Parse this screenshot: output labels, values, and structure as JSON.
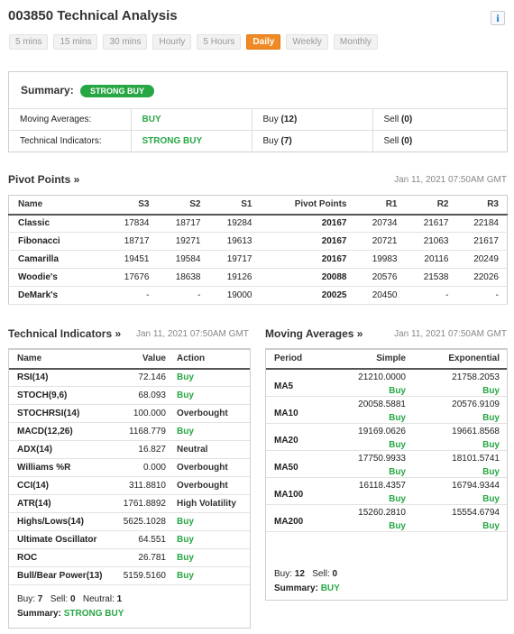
{
  "page": {
    "title": "003850 Technical Analysis"
  },
  "tabs": [
    {
      "label": "5 mins",
      "active": false
    },
    {
      "label": "15 mins",
      "active": false
    },
    {
      "label": "30 mins",
      "active": false
    },
    {
      "label": "Hourly",
      "active": false
    },
    {
      "label": "5 Hours",
      "active": false
    },
    {
      "label": "Daily",
      "active": true
    },
    {
      "label": "Weekly",
      "active": false
    },
    {
      "label": "Monthly",
      "active": false
    }
  ],
  "summary": {
    "label": "Summary:",
    "badge": "STRONG BUY",
    "rows": [
      {
        "name": "Moving Averages:",
        "signal": "BUY",
        "buy_label": "Buy",
        "buy_count": "(12)",
        "sell_label": "Sell",
        "sell_count": "(0)"
      },
      {
        "name": "Technical Indicators:",
        "signal": "STRONG BUY",
        "buy_label": "Buy",
        "buy_count": "(7)",
        "sell_label": "Sell",
        "sell_count": "(0)"
      }
    ]
  },
  "pivot": {
    "title": "Pivot Points »",
    "date": "Jan 11, 2021 07:50AM GMT",
    "headers": [
      "Name",
      "S3",
      "S2",
      "S1",
      "Pivot Points",
      "R1",
      "R2",
      "R3"
    ],
    "rows": [
      [
        "Classic",
        "17834",
        "18717",
        "19284",
        "20167",
        "20734",
        "21617",
        "22184"
      ],
      [
        "Fibonacci",
        "18717",
        "19271",
        "19613",
        "20167",
        "20721",
        "21063",
        "21617"
      ],
      [
        "Camarilla",
        "19451",
        "19584",
        "19717",
        "20167",
        "19983",
        "20116",
        "20249"
      ],
      [
        "Woodie's",
        "17676",
        "18638",
        "19126",
        "20088",
        "20576",
        "21538",
        "22026"
      ],
      [
        "DeMark's",
        "-",
        "-",
        "19000",
        "20025",
        "20450",
        "-",
        "-"
      ]
    ]
  },
  "indicators": {
    "title": "Technical Indicators »",
    "date": "Jan 11, 2021 07:50AM GMT",
    "headers": [
      "Name",
      "Value",
      "Action"
    ],
    "rows": [
      {
        "name": "RSI(14)",
        "value": "72.146",
        "action": "Buy",
        "type": "buy"
      },
      {
        "name": "STOCH(9,6)",
        "value": "68.093",
        "action": "Buy",
        "type": "buy"
      },
      {
        "name": "STOCHRSI(14)",
        "value": "100.000",
        "action": "Overbought",
        "type": "over"
      },
      {
        "name": "MACD(12,26)",
        "value": "1168.779",
        "action": "Buy",
        "type": "buy"
      },
      {
        "name": "ADX(14)",
        "value": "16.827",
        "action": "Neutral",
        "type": "neutral"
      },
      {
        "name": "Williams %R",
        "value": "0.000",
        "action": "Overbought",
        "type": "over"
      },
      {
        "name": "CCI(14)",
        "value": "311.8810",
        "action": "Overbought",
        "type": "over"
      },
      {
        "name": "ATR(14)",
        "value": "1761.8892",
        "action": "High Volatility",
        "type": "over"
      },
      {
        "name": "Highs/Lows(14)",
        "value": "5625.1028",
        "action": "Buy",
        "type": "buy"
      },
      {
        "name": "Ultimate Oscillator",
        "value": "64.551",
        "action": "Buy",
        "type": "buy"
      },
      {
        "name": "ROC",
        "value": "26.781",
        "action": "Buy",
        "type": "buy"
      },
      {
        "name": "Bull/Bear Power(13)",
        "value": "5159.5160",
        "action": "Buy",
        "type": "buy"
      }
    ],
    "footer": {
      "buy_label": "Buy:",
      "buy": "7",
      "sell_label": "Sell:",
      "sell": "0",
      "neutral_label": "Neutral:",
      "neutral": "1",
      "summary_label": "Summary:",
      "summary": "STRONG BUY"
    }
  },
  "moving_averages": {
    "title": "Moving Averages »",
    "date": "Jan 11, 2021 07:50AM GMT",
    "headers": [
      "Period",
      "Simple",
      "Exponential"
    ],
    "rows": [
      {
        "period": "MA5",
        "simple": "21210.0000",
        "simple_sig": "Buy",
        "exp": "21758.2053",
        "exp_sig": "Buy"
      },
      {
        "period": "MA10",
        "simple": "20058.5881",
        "simple_sig": "Buy",
        "exp": "20576.9109",
        "exp_sig": "Buy"
      },
      {
        "period": "MA20",
        "simple": "19169.0626",
        "simple_sig": "Buy",
        "exp": "19661.8568",
        "exp_sig": "Buy"
      },
      {
        "period": "MA50",
        "simple": "17750.9933",
        "simple_sig": "Buy",
        "exp": "18101.5741",
        "exp_sig": "Buy"
      },
      {
        "period": "MA100",
        "simple": "16118.4357",
        "simple_sig": "Buy",
        "exp": "16794.9344",
        "exp_sig": "Buy"
      },
      {
        "period": "MA200",
        "simple": "15260.2810",
        "simple_sig": "Buy",
        "exp": "15554.6794",
        "exp_sig": "Buy"
      }
    ],
    "footer": {
      "buy_label": "Buy:",
      "buy": "12",
      "sell_label": "Sell:",
      "sell": "0",
      "summary_label": "Summary:",
      "summary": "BUY"
    }
  },
  "colors": {
    "accent": "#f08a24",
    "buy": "#27a744"
  },
  "icons": {
    "info": "info-icon"
  }
}
